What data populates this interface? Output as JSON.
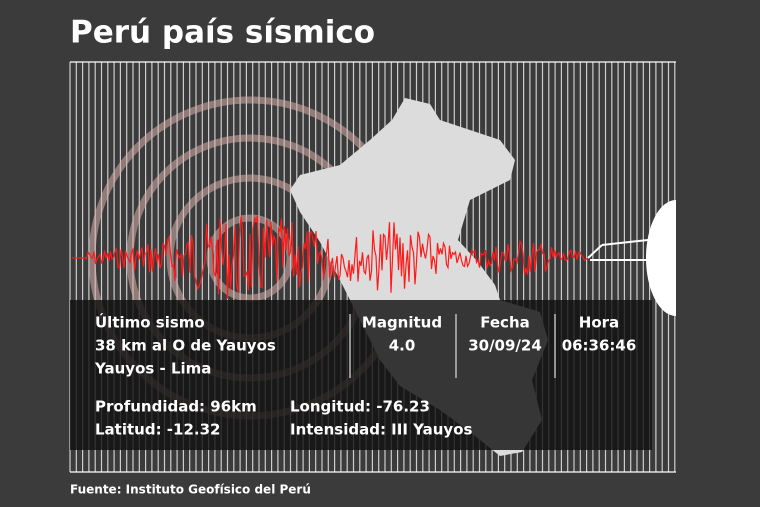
{
  "header": {
    "title": "Perú país sísmico"
  },
  "panel": {
    "location": {
      "label": "Último sismo",
      "place": "38 km al O de Yauyos",
      "region": "Yauyos - Lima"
    },
    "magnitude": {
      "label": "Magnitud",
      "value": "4.0"
    },
    "date": {
      "label": "Fecha",
      "value": "30/09/24"
    },
    "time": {
      "label": "Hora",
      "value": "06:36:46"
    },
    "details": [
      "Profundidad: 96km",
      "Longitud: -76.23",
      "Latitud: -12.32",
      "Intensidad: III Yauyos"
    ]
  },
  "footer": {
    "source": "Fuente: Instituto Geofísico del Perú"
  }
}
